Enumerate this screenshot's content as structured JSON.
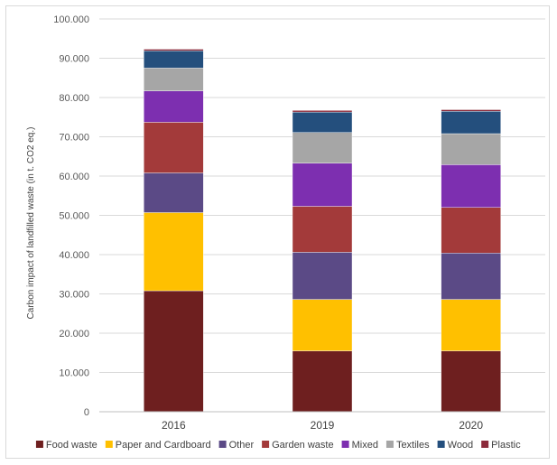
{
  "chart_data": {
    "type": "bar",
    "stacked": true,
    "categories": [
      "2016",
      "2019",
      "2020"
    ],
    "ylabel": "Carbon impact of landfilled waste (in t. CO2 eq.)",
    "ylim": [
      0,
      100000
    ],
    "yticks": [
      "0",
      "10.000",
      "20.000",
      "30.000",
      "40.000",
      "50.000",
      "60.000",
      "70.000",
      "80.000",
      "90.000",
      "100.000"
    ],
    "grid": true,
    "legend_position": "bottom",
    "series": [
      {
        "name": "Food waste",
        "color": "#6e1f1f",
        "values": [
          30800,
          15500,
          15500
        ]
      },
      {
        "name": "Paper and Cardboard",
        "color": "#ffc000",
        "values": [
          19900,
          13100,
          13100
        ]
      },
      {
        "name": "Other",
        "color": "#5b4a86",
        "values": [
          10100,
          12000,
          11800
        ]
      },
      {
        "name": "Garden waste",
        "color": "#a33a3a",
        "values": [
          12900,
          11700,
          11600
        ]
      },
      {
        "name": "Mixed",
        "color": "#7d2fb0",
        "values": [
          8000,
          11000,
          10900
        ]
      },
      {
        "name": "Textiles",
        "color": "#a6a6a6",
        "values": [
          5800,
          7800,
          7900
        ]
      },
      {
        "name": "Wood",
        "color": "#244f7d",
        "values": [
          4400,
          5200,
          5700
        ]
      },
      {
        "name": "Plastic",
        "color": "#8b2a3a",
        "values": [
          400,
          400,
          400
        ]
      }
    ]
  }
}
